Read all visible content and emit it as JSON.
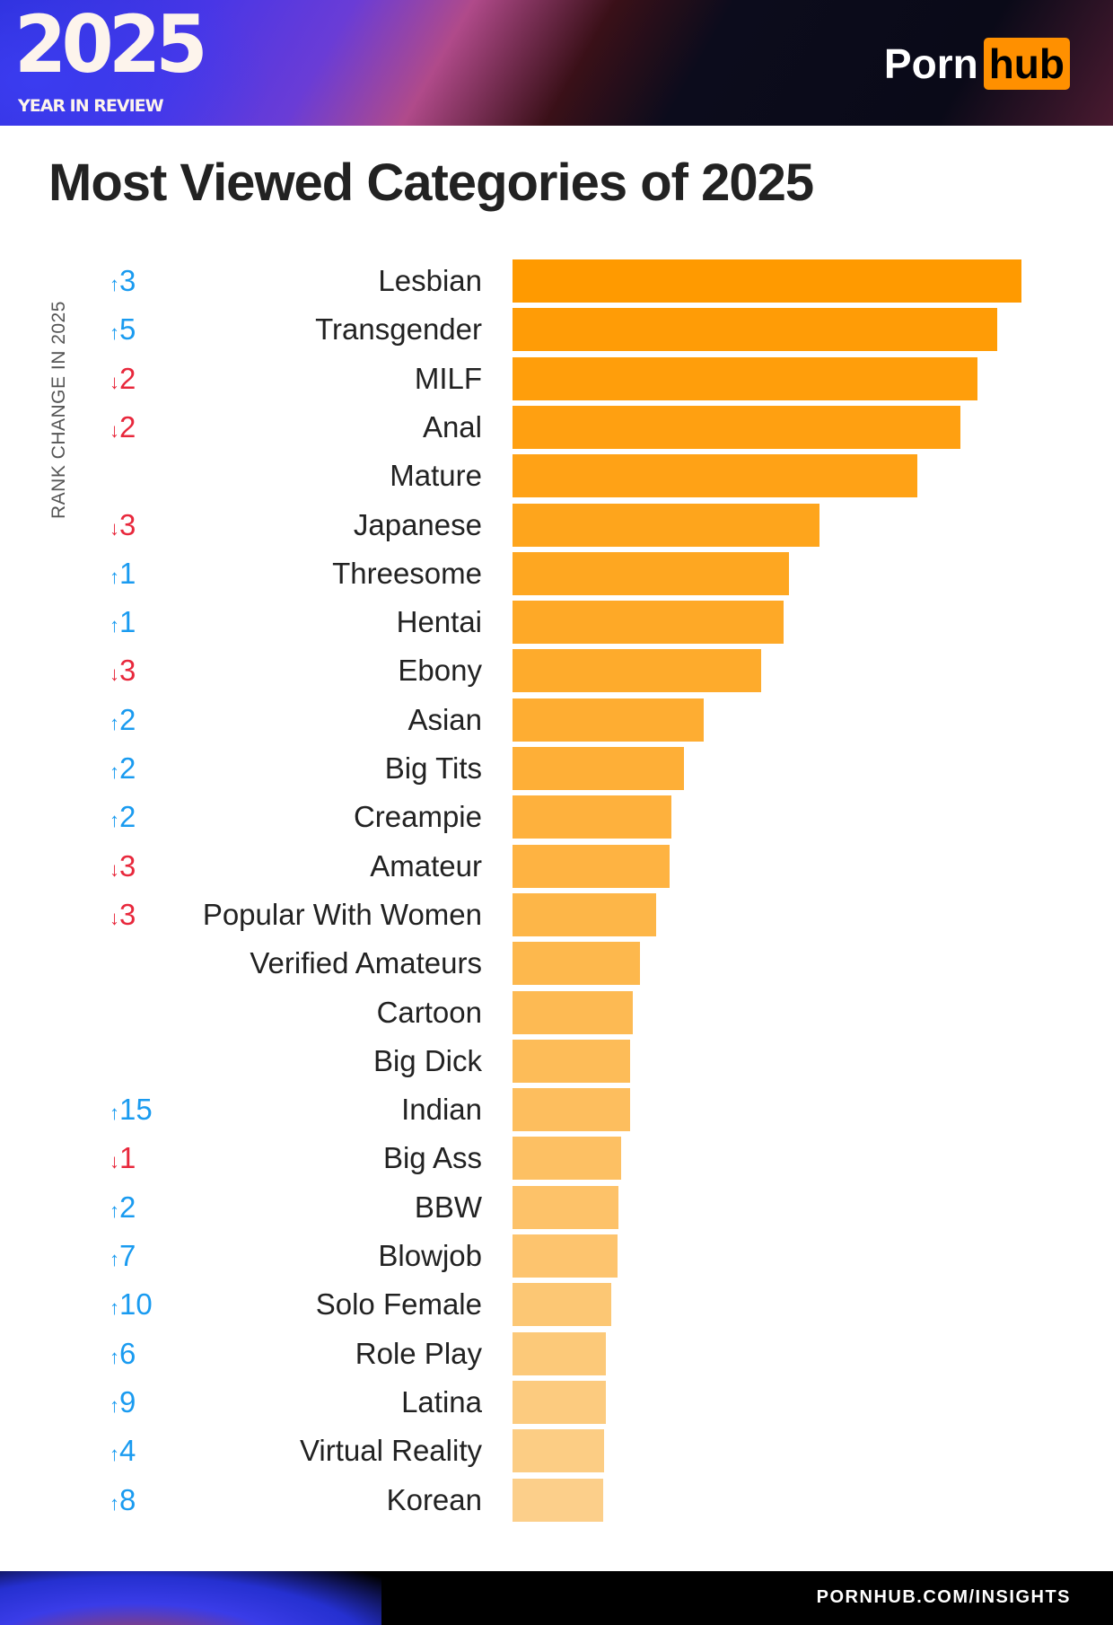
{
  "header": {
    "year": "2025",
    "subtitle": "YEAR IN REVIEW",
    "logo_left": "Porn",
    "logo_right": "hub"
  },
  "footer": {
    "url": "PORNHUB.COM/INSIGHTS"
  },
  "colors": {
    "up": "#1a9bf0",
    "down": "#e8283c",
    "bar_start": "#ff9a00",
    "bar_end": "#fccf8a",
    "logo_accent": "#ff9000"
  },
  "chart_data": {
    "type": "bar",
    "orientation": "horizontal",
    "title": "Most Viewed Categories of 2025",
    "rank_change_label": "RANK CHANGE IN 2025",
    "value_scale": "relative (top bar = 100), no axis printed",
    "categories": [
      "Lesbian",
      "Transgender",
      "MILF",
      "Anal",
      "Mature",
      "Japanese",
      "Threesome",
      "Hentai",
      "Ebony",
      "Asian",
      "Big Tits",
      "Creampie",
      "Amateur",
      "Popular With Women",
      "Verified Amateurs",
      "Cartoon",
      "Big Dick",
      "Indian",
      "Big Ass",
      "BBW",
      "Blowjob",
      "Solo Female",
      "Role Play",
      "Latina",
      "Virtual Reality",
      "Korean"
    ],
    "values": [
      100,
      95.3,
      91.4,
      88.0,
      79.6,
      60.4,
      54.3,
      53.3,
      48.8,
      37.6,
      33.7,
      31.2,
      30.8,
      28.2,
      25.1,
      23.7,
      23.1,
      23.1,
      21.4,
      20.8,
      20.6,
      19.4,
      18.4,
      18.4,
      18.0,
      17.8
    ],
    "rank_changes": [
      {
        "dir": "up",
        "text": "3"
      },
      {
        "dir": "up",
        "text": "5"
      },
      {
        "dir": "down",
        "text": "2"
      },
      {
        "dir": "down",
        "text": "2"
      },
      {
        "dir": "",
        "text": ""
      },
      {
        "dir": "down",
        "text": "3"
      },
      {
        "dir": "up",
        "text": "1"
      },
      {
        "dir": "up",
        "text": "1"
      },
      {
        "dir": "down",
        "text": "3"
      },
      {
        "dir": "up",
        "text": "2"
      },
      {
        "dir": "up",
        "text": "2"
      },
      {
        "dir": "up",
        "text": "2"
      },
      {
        "dir": "down",
        "text": "3"
      },
      {
        "dir": "down",
        "text": "3"
      },
      {
        "dir": "",
        "text": ""
      },
      {
        "dir": "",
        "text": ""
      },
      {
        "dir": "",
        "text": ""
      },
      {
        "dir": "up",
        "text": "15"
      },
      {
        "dir": "down",
        "text": "1"
      },
      {
        "dir": "up",
        "text": "2"
      },
      {
        "dir": "up",
        "text": "7"
      },
      {
        "dir": "up",
        "text": "10"
      },
      {
        "dir": "up",
        "text": "6"
      },
      {
        "dir": "up",
        "text": "9"
      },
      {
        "dir": "up",
        "text": "4"
      },
      {
        "dir": "up",
        "text": "8"
      }
    ],
    "grid": false,
    "legend": "none"
  }
}
